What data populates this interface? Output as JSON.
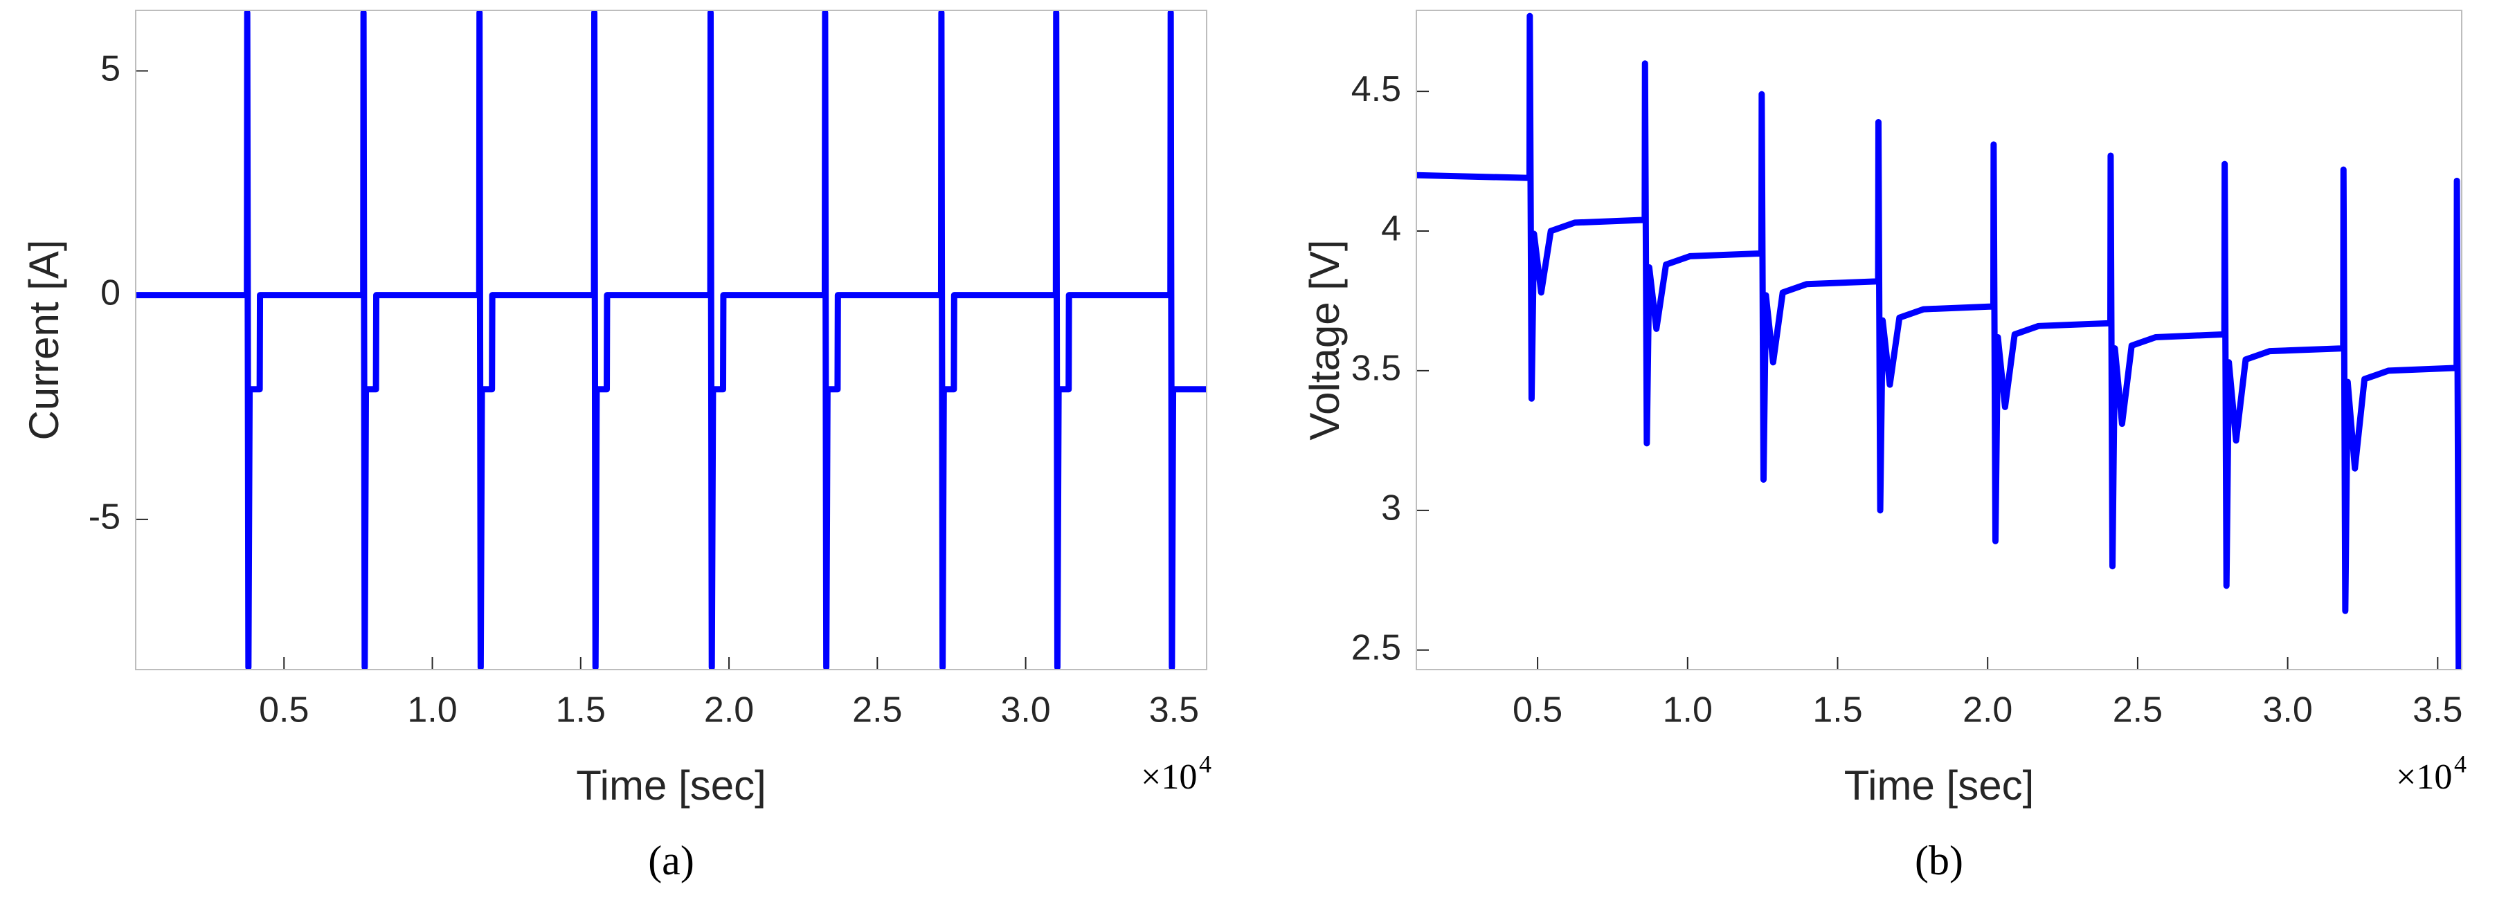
{
  "chart_data": [
    {
      "type": "line",
      "x_label": "Time [sec]",
      "y_label": "Current [A]",
      "panel_label": "(a)",
      "x_multiplier": "×10",
      "x_exponent": "4",
      "color": "#0000ff",
      "xlim": [
        0,
        36100
      ],
      "ylim": [
        -8.35,
        6.35
      ],
      "xticks": [
        {
          "value": 5000,
          "label": "0.5"
        },
        {
          "value": 10000,
          "label": "1.0"
        },
        {
          "value": 15000,
          "label": "1.5"
        },
        {
          "value": 20000,
          "label": "2.0"
        },
        {
          "value": 25000,
          "label": "2.5"
        },
        {
          "value": 30000,
          "label": "3.0"
        },
        {
          "value": 35000,
          "label": "3.5"
        }
      ],
      "yticks": [
        -5,
        0,
        5
      ],
      "x": [
        0,
        3750,
        3760,
        3800,
        3840,
        4180,
        4190,
        7670,
        7680,
        7720,
        7760,
        8100,
        8110,
        11580,
        11590,
        11630,
        11670,
        12010,
        12020,
        15450,
        15460,
        15500,
        15540,
        15880,
        15890,
        19370,
        19380,
        19420,
        19460,
        19800,
        19810,
        23230,
        23240,
        23280,
        23320,
        23660,
        23670,
        27150,
        27160,
        27200,
        27240,
        27580,
        27590,
        31020,
        31030,
        31070,
        31110,
        31450,
        31460,
        34880,
        34890,
        34930,
        34970,
        36100
      ],
      "values": [
        0,
        0,
        6.3,
        -8.3,
        -2.1,
        -2.1,
        0,
        0,
        6.3,
        -8.3,
        -2.1,
        -2.1,
        0,
        0,
        6.3,
        -8.3,
        -2.1,
        -2.1,
        0,
        0,
        6.3,
        -8.3,
        -2.1,
        -2.1,
        0,
        0,
        6.3,
        -8.3,
        -2.1,
        -2.1,
        0,
        0,
        6.3,
        -8.3,
        -2.1,
        -2.1,
        0,
        0,
        6.3,
        -8.3,
        -2.1,
        -2.1,
        0,
        0,
        6.3,
        -8.3,
        -2.1,
        -2.1,
        0,
        0,
        6.3,
        -8.3,
        -2.1,
        -2.1
      ]
    },
    {
      "type": "line",
      "x_label": "Time [sec]",
      "y_label": "Voltage [V]",
      "panel_label": "(b)",
      "x_multiplier": "×10",
      "x_exponent": "4",
      "color": "#0000ff",
      "xlim": [
        960,
        35800
      ],
      "ylim": [
        2.43,
        4.79
      ],
      "xticks": [
        {
          "value": 5000,
          "label": "0.5"
        },
        {
          "value": 10000,
          "label": "1.0"
        },
        {
          "value": 15000,
          "label": "1.5"
        },
        {
          "value": 20000,
          "label": "2.0"
        },
        {
          "value": 25000,
          "label": "2.5"
        },
        {
          "value": 30000,
          "label": "3.0"
        },
        {
          "value": 35000,
          "label": "3.5"
        }
      ],
      "yticks": [
        2.5,
        3,
        3.5,
        4,
        4.5
      ],
      "x": [
        960,
        4730,
        4740,
        4800,
        4880,
        5120,
        5440,
        6240,
        8570,
        8580,
        8640,
        8720,
        8960,
        9280,
        10080,
        12460,
        12470,
        12530,
        12610,
        12850,
        13170,
        13970,
        16350,
        16360,
        16420,
        16500,
        16740,
        17060,
        17860,
        20190,
        20200,
        20260,
        20340,
        20580,
        20900,
        21700,
        24090,
        24100,
        24160,
        24240,
        24480,
        24800,
        25600,
        27890,
        27900,
        27960,
        28040,
        28280,
        28600,
        29400,
        31850,
        31860,
        31920,
        32000,
        32240,
        32560,
        33360,
        35630,
        35640,
        35700,
        35800
      ],
      "values": [
        4.2,
        4.19,
        4.77,
        3.4,
        3.99,
        3.78,
        4.0,
        4.03,
        4.04,
        4.6,
        3.24,
        3.87,
        3.65,
        3.88,
        3.91,
        3.92,
        4.49,
        3.11,
        3.77,
        3.53,
        3.78,
        3.81,
        3.82,
        4.39,
        3.0,
        3.68,
        3.45,
        3.69,
        3.72,
        3.73,
        4.31,
        2.89,
        3.62,
        3.37,
        3.63,
        3.66,
        3.67,
        4.27,
        2.8,
        3.58,
        3.31,
        3.59,
        3.62,
        3.63,
        4.24,
        2.73,
        3.53,
        3.25,
        3.54,
        3.57,
        3.58,
        4.22,
        2.64,
        3.46,
        3.15,
        3.47,
        3.5,
        3.51,
        4.18,
        2.43,
        3.12
      ]
    }
  ]
}
